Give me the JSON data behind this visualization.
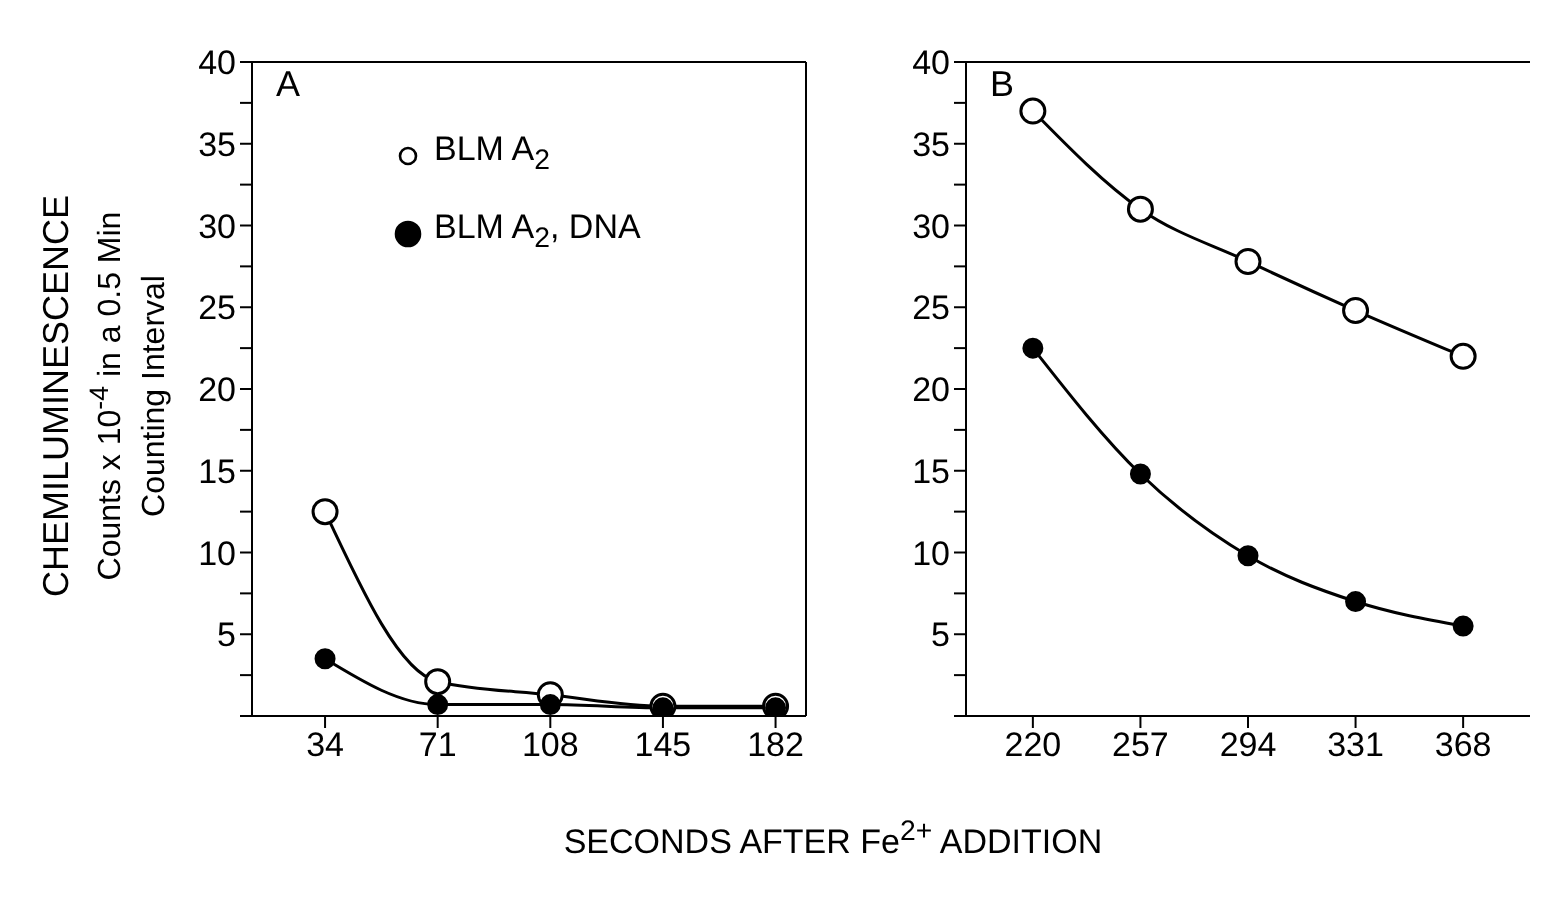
{
  "chart_data": [
    {
      "type": "line",
      "title": "A",
      "xlabel": "SECONDS AFTER Fe$^{2+}$ ADDITION",
      "ylabel": "CHEMILUMINESCENCE\nCounts x 10$^{-4}$ in a 0.5 Min\nCounting Interval",
      "x": [
        34,
        71,
        108,
        145,
        182
      ],
      "xlim": [
        10,
        192
      ],
      "xticks": [
        34,
        71,
        108,
        145,
        182
      ],
      "ylim": [
        0,
        40
      ],
      "yticks": [
        {
          "value": 0,
          "label": null
        },
        {
          "value": 2.5,
          "label": null
        },
        5,
        {
          "value": 7.5,
          "label": null
        },
        10,
        {
          "value": 12.5,
          "label": null
        },
        15,
        {
          "value": 17.5,
          "label": null
        },
        20,
        {
          "value": 22.5,
          "label": null
        },
        25,
        {
          "value": 27.5,
          "label": null
        },
        30,
        {
          "value": 32.5,
          "label": null
        },
        35,
        {
          "value": 37.5,
          "label": null
        },
        40
      ],
      "series": [
        {
          "name": "BLM A$_{2}$",
          "color": "#000000",
          "values": [
            12.5,
            2.1,
            1.3,
            0.6,
            0.6
          ]
        },
        {
          "name": "BLM A$_{2}$, DNA",
          "color": "#000000",
          "values": [
            3.5,
            0.7,
            0.7,
            0.5,
            0.5
          ]
        }
      ],
      "legend": "top",
      "grid": false,
      "marker": "circle",
      "line_style": "solid"
    },
    {
      "type": "line",
      "title": "B",
      "x": [
        220,
        257,
        294,
        331,
        368
      ],
      "xlim": [
        197,
        391
      ],
      "xticks": [
        220,
        257,
        294,
        331,
        368
      ],
      "ylim": [
        0,
        40
      ],
      "yticks": [
        {
          "value": 0,
          "label": null
        },
        {
          "value": 2.5,
          "label": null
        },
        5,
        {
          "value": 7.5,
          "label": null
        },
        10,
        {
          "value": 12.5,
          "label": null
        },
        15,
        {
          "value": 17.5,
          "label": null
        },
        20,
        {
          "value": 22.5,
          "label": null
        },
        25,
        {
          "value": 27.5,
          "label": null
        },
        30,
        {
          "value": 32.5,
          "label": null
        },
        35,
        {
          "value": 37.5,
          "label": null
        },
        40
      ],
      "series": [
        {
          "color": "#000000",
          "values": [
            37,
            31,
            27.8,
            24.8,
            22
          ]
        },
        {
          "color": "#000000",
          "values": [
            22.5,
            14.8,
            9.8,
            7,
            5.5
          ]
        }
      ],
      "legend": false,
      "grid": false,
      "marker": "circle",
      "line_style": "solid"
    }
  ]
}
